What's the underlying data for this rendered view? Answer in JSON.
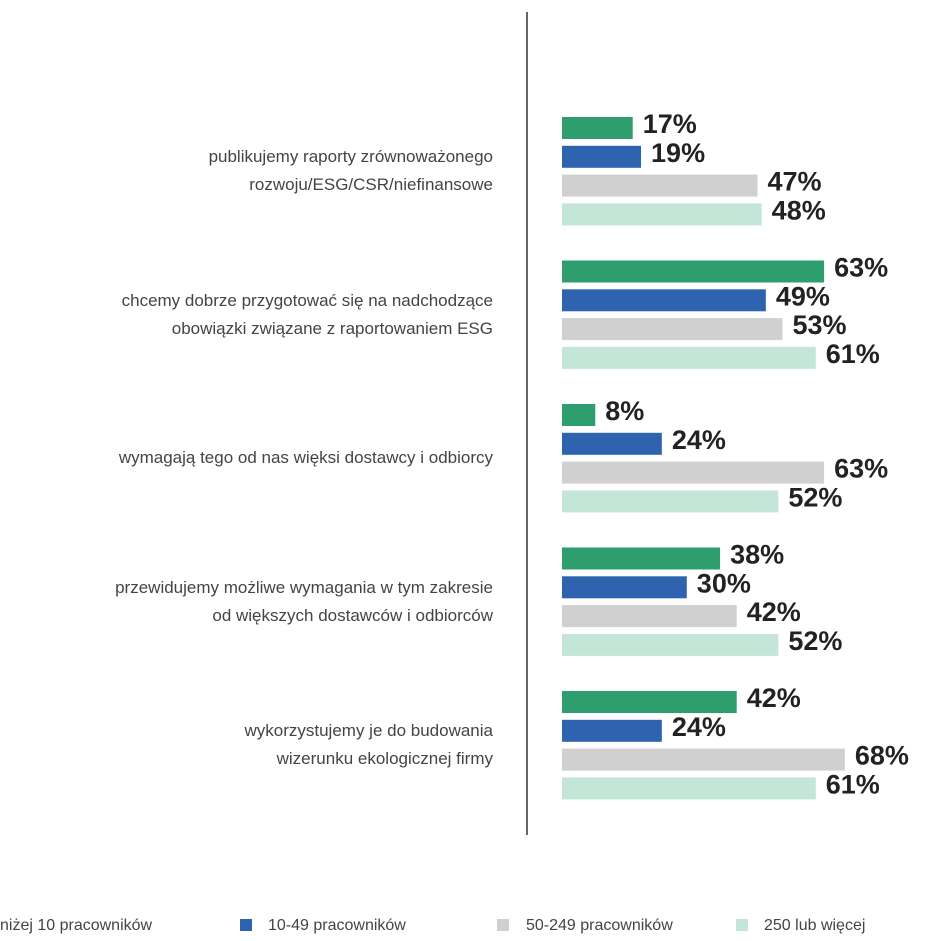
{
  "chart_data": {
    "type": "bar",
    "orientation": "horizontal",
    "categories": [
      "publikujemy raporty zrównoważonego\nrozwoju/ESG/CSR/niefinansowe",
      "chcemy dobrze przygotować się na nadchodzące\nobowiązki związane z raportowaniem ESG",
      "wymagają tego od nas więksi dostawcy i odbiorcy",
      "przewidujemy możliwe wymagania w tym zakresie\nod większych dostawców i odbiorców",
      "wykorzystujemy je do budowania\nwizerunku ekologicznej firmy"
    ],
    "series": [
      {
        "name": "niżej 10 pracowników",
        "color": "#2e9e6e",
        "values": [
          17,
          63,
          8,
          38,
          42
        ],
        "value_labels": [
          "17%",
          "63%",
          "8%",
          "38%",
          "42%"
        ]
      },
      {
        "name": "10-49 pracowników",
        "color": "#2e63b0",
        "values": [
          19,
          49,
          24,
          30,
          24
        ],
        "value_labels": [
          "19%",
          "49%",
          "24%",
          "30%",
          "24%"
        ]
      },
      {
        "name": "50-249 pracowników",
        "color": "#d0d0d0",
        "values": [
          47,
          53,
          63,
          42,
          68
        ],
        "value_labels": [
          "47%",
          "53%",
          "63%",
          "42%",
          "68%"
        ]
      },
      {
        "name": "250 lub więcej",
        "color": "#c4e6d9",
        "values": [
          48,
          61,
          52,
          52,
          61
        ],
        "value_labels": [
          "48%",
          "61%",
          "52%",
          "52%",
          "61%"
        ]
      }
    ]
  }
}
